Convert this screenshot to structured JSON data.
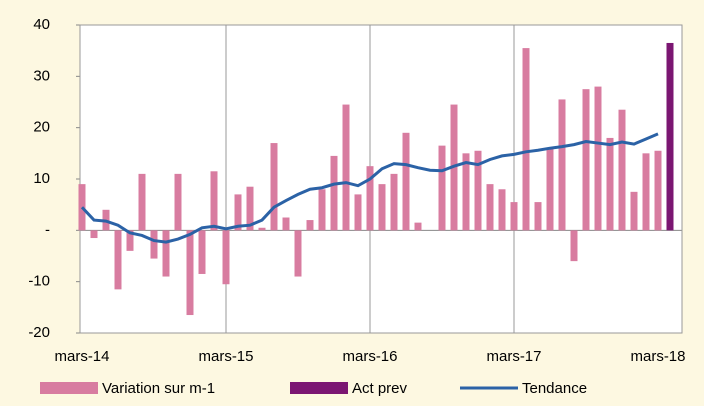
{
  "chart_data": {
    "type": "bar",
    "categories": [
      "mars-14",
      null,
      null,
      null,
      null,
      null,
      null,
      null,
      null,
      null,
      null,
      null,
      "mars-15",
      null,
      null,
      null,
      null,
      null,
      null,
      null,
      null,
      null,
      null,
      null,
      "mars-16",
      null,
      null,
      null,
      null,
      null,
      null,
      null,
      null,
      null,
      null,
      null,
      "mars-17",
      null,
      null,
      null,
      null,
      null,
      null,
      null,
      null,
      null,
      null,
      null,
      "mars-18",
      null
    ],
    "series": [
      {
        "name": "Variation sur m-1",
        "type": "bar",
        "color": "#d87ca0",
        "values": [
          9,
          -1.5,
          4,
          -11.5,
          -4,
          11,
          -5.5,
          -9,
          11,
          -16.5,
          -8.5,
          11.5,
          -10.5,
          7,
          8.5,
          0.5,
          17,
          2.5,
          -9,
          2,
          8,
          14.5,
          24.5,
          7,
          12.5,
          9,
          11,
          19,
          1.5,
          0,
          16.5,
          24.5,
          15,
          15.5,
          9,
          8,
          5.5,
          35.5,
          5.5,
          16,
          25.5,
          -6,
          27.5,
          28,
          18,
          23.5,
          7.5,
          15,
          15.5,
          null
        ]
      },
      {
        "name": "Act prev",
        "type": "bar",
        "color": "#7b1672",
        "values": [
          null,
          null,
          null,
          null,
          null,
          null,
          null,
          null,
          null,
          null,
          null,
          null,
          null,
          null,
          null,
          null,
          null,
          null,
          null,
          null,
          null,
          null,
          null,
          null,
          null,
          null,
          null,
          null,
          null,
          null,
          null,
          null,
          null,
          null,
          null,
          null,
          null,
          null,
          null,
          null,
          null,
          null,
          null,
          null,
          null,
          null,
          null,
          null,
          null,
          36.5
        ]
      },
      {
        "name": "Tendance",
        "type": "line",
        "color": "#2b62a6",
        "values": [
          4.5,
          2,
          1.8,
          1,
          -0.5,
          -1,
          -2,
          -2.3,
          -1.7,
          -0.8,
          0.5,
          0.8,
          0.3,
          0.8,
          1,
          2,
          4.5,
          5.8,
          7,
          8,
          8.3,
          9,
          9.3,
          8.7,
          10,
          12,
          13,
          12.8,
          12.2,
          11.7,
          11.6,
          12.5,
          13.2,
          12.8,
          13.8,
          14.5,
          14.8,
          15.3,
          15.6,
          16,
          16.3,
          16.7,
          17.3,
          17,
          16.7,
          17.2,
          16.8,
          17.8,
          18.8,
          null
        ]
      }
    ],
    "ylim": [
      -20,
      40
    ],
    "yticks": [
      -20,
      -10,
      {
        "value": 0,
        "label": "-"
      },
      10,
      20,
      30,
      40
    ],
    "grid_x": true,
    "legend": "bottom"
  }
}
